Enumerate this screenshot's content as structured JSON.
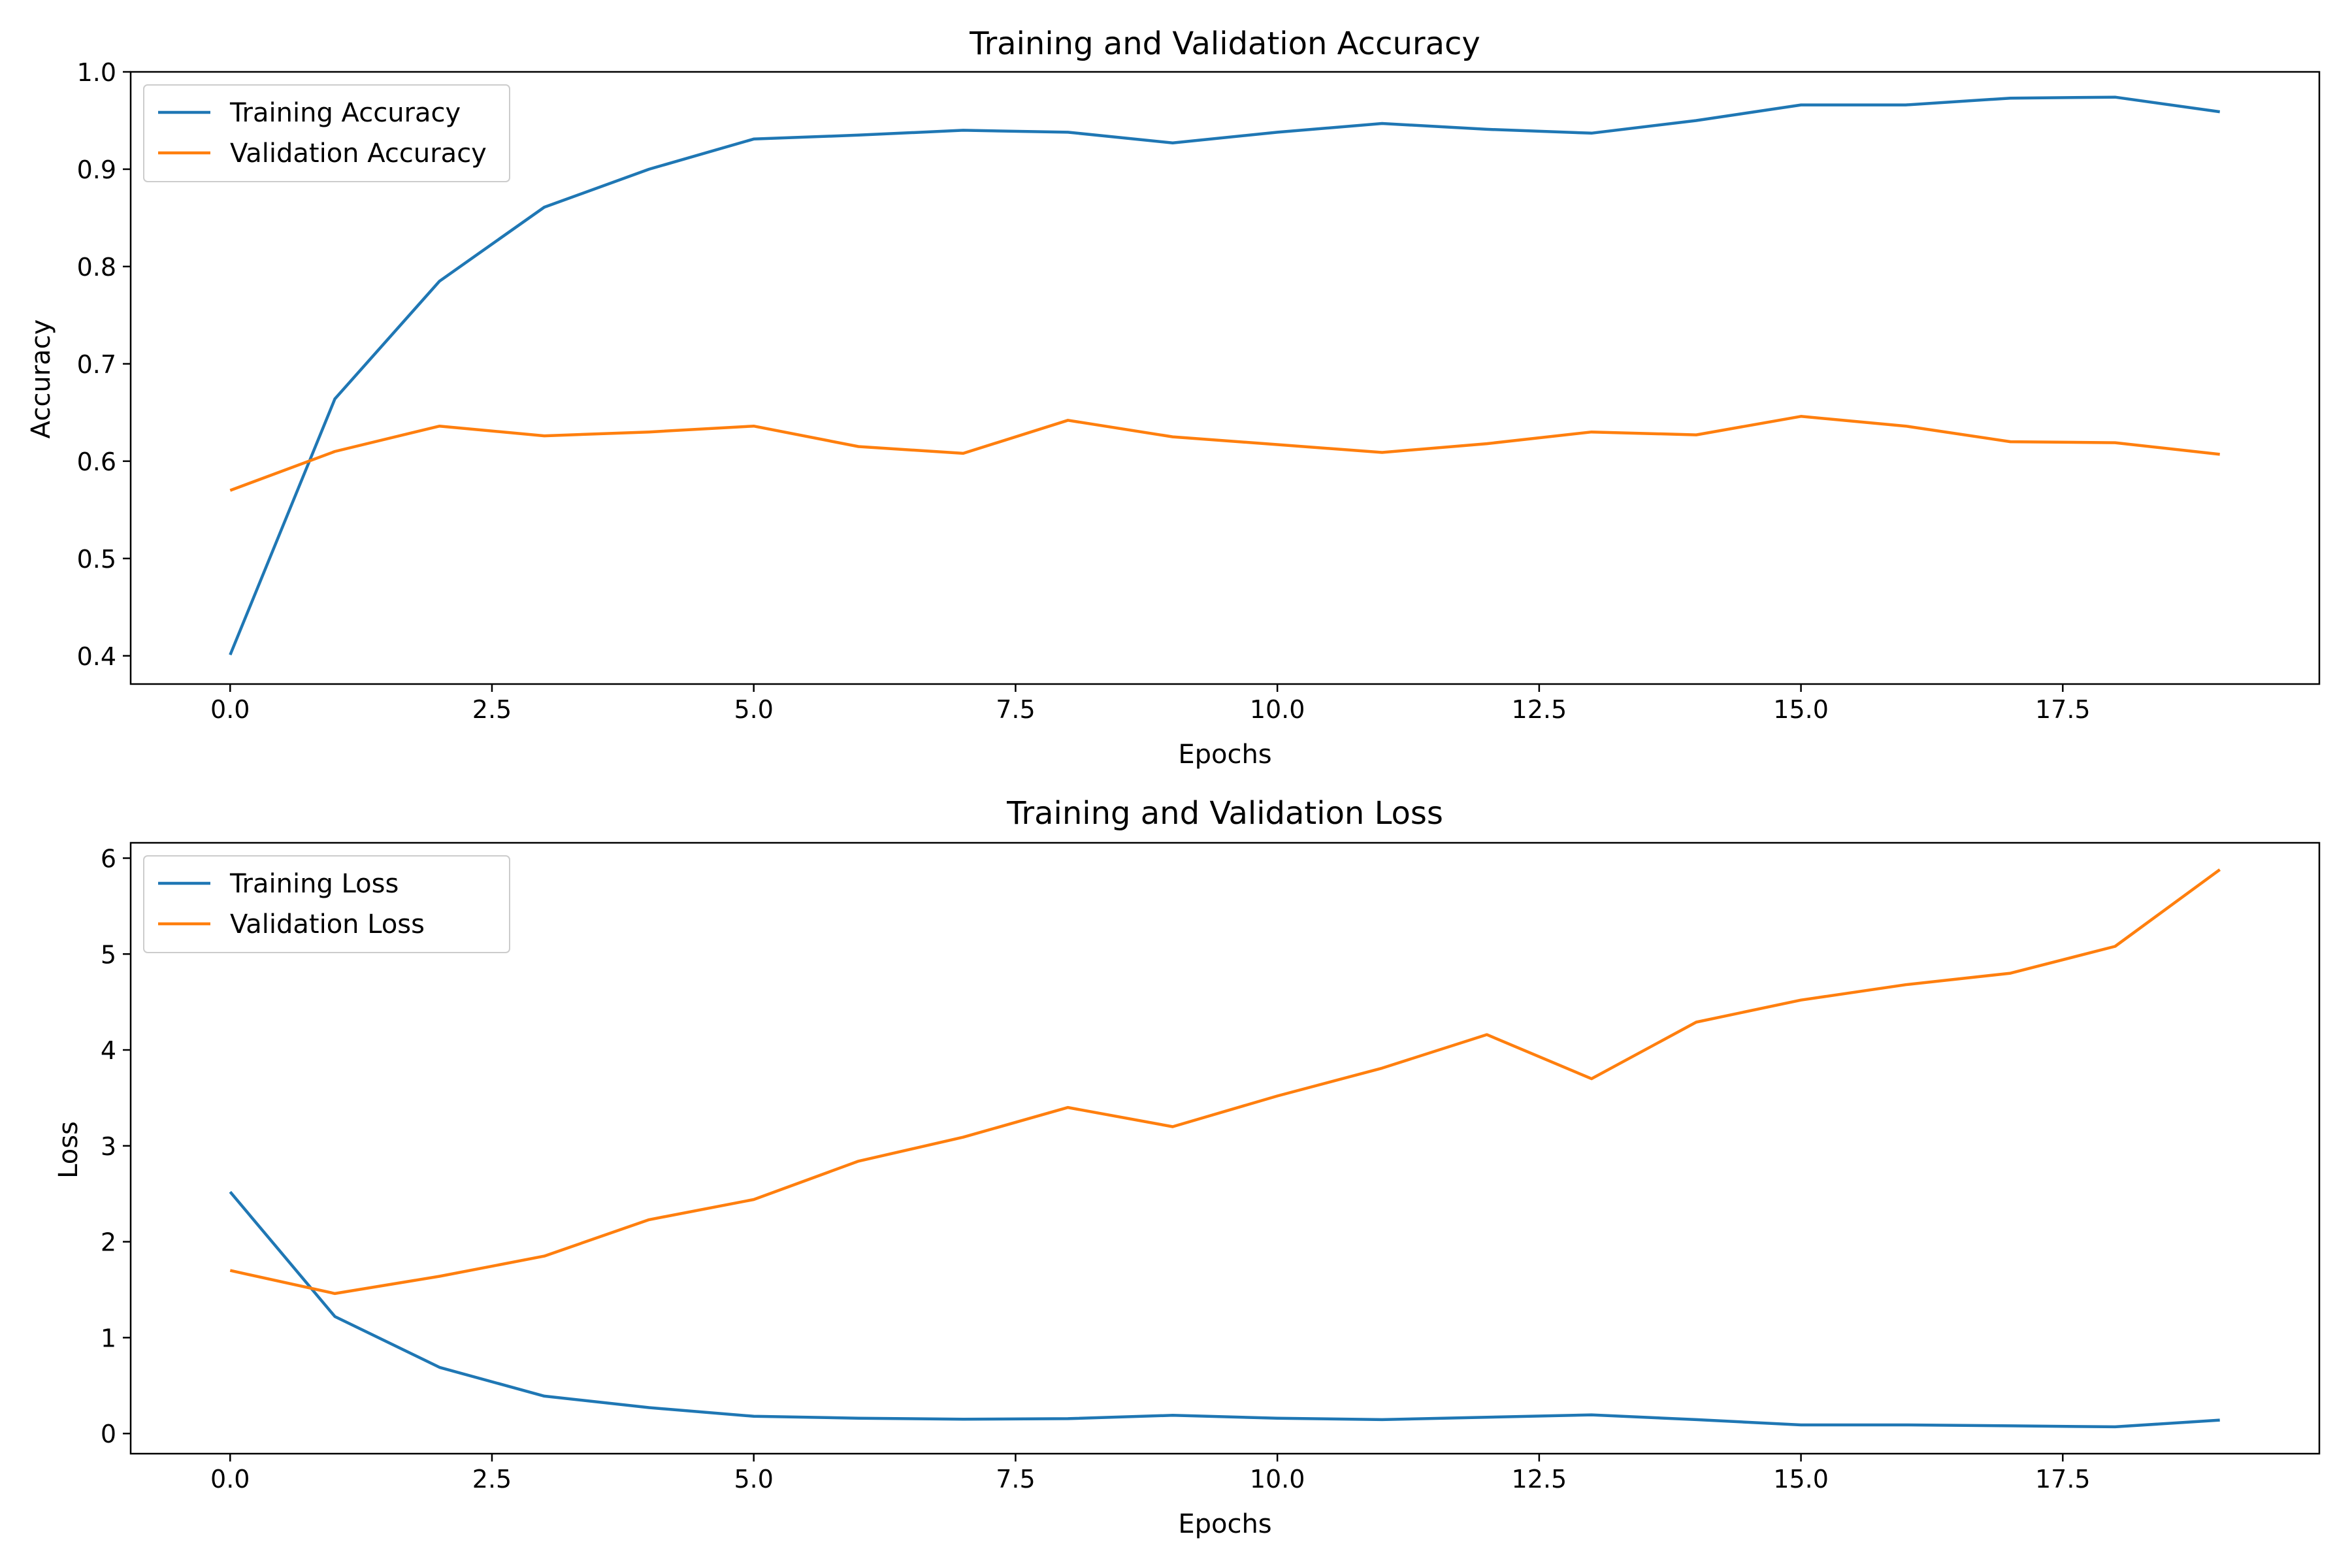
{
  "chart_data": [
    {
      "type": "line",
      "title": "Training and Validation Accuracy",
      "xlabel": "Epochs",
      "ylabel": "Accuracy",
      "xlim": [
        -0.95,
        19.95
      ],
      "ylim": [
        0.371,
        1.0
      ],
      "xticks": [
        0,
        2.5,
        5,
        7.5,
        10,
        12.5,
        15,
        17.5
      ],
      "xtick_labels": [
        "0.0",
        "2.5",
        "5.0",
        "7.5",
        "10.0",
        "12.5",
        "15.0",
        "17.5"
      ],
      "yticks": [
        0.4,
        0.5,
        0.6,
        0.7,
        0.8,
        0.9,
        1.0
      ],
      "ytick_labels": [
        "0.4",
        "0.5",
        "0.6",
        "0.7",
        "0.8",
        "0.9",
        "1.0"
      ],
      "legend_position": "upper-left",
      "grid": false,
      "x": [
        0,
        1,
        2,
        3,
        4,
        5,
        6,
        7,
        8,
        9,
        10,
        11,
        12,
        13,
        14,
        15,
        16,
        17,
        18,
        19
      ],
      "series": [
        {
          "name": "Training Accuracy",
          "color": "#1f77b4",
          "values": [
            0.401,
            0.664,
            0.785,
            0.861,
            0.9,
            0.931,
            0.935,
            0.94,
            0.938,
            0.927,
            0.938,
            0.947,
            0.941,
            0.937,
            0.95,
            0.966,
            0.966,
            0.973,
            0.974,
            0.959
          ]
        },
        {
          "name": "Validation Accuracy",
          "color": "#ff7f0e",
          "values": [
            0.57,
            0.61,
            0.636,
            0.626,
            0.63,
            0.636,
            0.615,
            0.608,
            0.642,
            0.625,
            0.617,
            0.609,
            0.618,
            0.63,
            0.627,
            0.646,
            0.636,
            0.62,
            0.619,
            0.607
          ]
        }
      ]
    },
    {
      "type": "line",
      "title": "Training and Validation Loss",
      "xlabel": "Epochs",
      "ylabel": "Loss",
      "xlim": [
        -0.95,
        19.95
      ],
      "ylim": [
        -0.21,
        6.16
      ],
      "xticks": [
        0,
        2.5,
        5,
        7.5,
        10,
        12.5,
        15,
        17.5
      ],
      "xtick_labels": [
        "0.0",
        "2.5",
        "5.0",
        "7.5",
        "10.0",
        "12.5",
        "15.0",
        "17.5"
      ],
      "yticks": [
        0,
        1,
        2,
        3,
        4,
        5,
        6
      ],
      "ytick_labels": [
        "0",
        "1",
        "2",
        "3",
        "4",
        "5",
        "6"
      ],
      "legend_position": "upper-left",
      "grid": false,
      "x": [
        0,
        1,
        2,
        3,
        4,
        5,
        6,
        7,
        8,
        9,
        10,
        11,
        12,
        13,
        14,
        15,
        16,
        17,
        18,
        19
      ],
      "series": [
        {
          "name": "Training Loss",
          "color": "#1f77b4",
          "values": [
            2.52,
            1.22,
            0.69,
            0.39,
            0.27,
            0.18,
            0.16,
            0.15,
            0.155,
            0.19,
            0.16,
            0.145,
            0.17,
            0.195,
            0.145,
            0.09,
            0.09,
            0.08,
            0.07,
            0.14
          ]
        },
        {
          "name": "Validation Loss",
          "color": "#ff7f0e",
          "values": [
            1.7,
            1.46,
            1.64,
            1.85,
            2.23,
            2.44,
            2.84,
            3.09,
            3.4,
            3.2,
            3.52,
            3.81,
            4.16,
            3.7,
            4.29,
            4.52,
            4.68,
            4.8,
            5.08,
            5.88
          ]
        }
      ]
    }
  ]
}
